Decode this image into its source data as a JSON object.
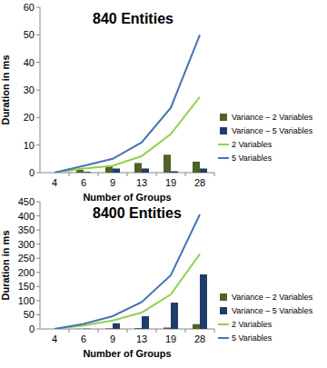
{
  "chart_data": [
    {
      "type": "bar",
      "title": "840 Entities",
      "x_label": "Number of Groups",
      "y_label": "Duration in ms",
      "categories": [
        "4",
        "6",
        "9",
        "13",
        "19",
        "28"
      ],
      "ylim": [
        0,
        60
      ],
      "yticks": [
        0,
        10,
        20,
        30,
        40,
        50,
        60
      ],
      "grid": false,
      "legend": "right",
      "series": [
        {
          "name": "Variance – 2 Variables",
          "type": "bar",
          "color": "#4f6228",
          "values": [
            0,
            1,
            2.5,
            3.5,
            6.5,
            4
          ]
        },
        {
          "name": "Variance – 5 Variables",
          "type": "bar",
          "color": "#1f3d6b",
          "values": [
            0,
            0.3,
            1.5,
            1.5,
            0.5,
            1.5
          ]
        },
        {
          "name": "2 Variables",
          "type": "line",
          "color": "#92d050",
          "values": [
            0,
            1.5,
            2.5,
            6,
            14,
            27.5
          ]
        },
        {
          "name": "5 Variables",
          "type": "line",
          "color": "#4672b5",
          "values": [
            0,
            2.5,
            5,
            11,
            23.5,
            50
          ]
        }
      ]
    },
    {
      "type": "bar",
      "title": "8400 Entities",
      "x_label": "Number of Groups",
      "y_label": "Duration in ms",
      "categories": [
        "4",
        "6",
        "9",
        "13",
        "19",
        "28"
      ],
      "ylim": [
        0,
        450
      ],
      "yticks": [
        0,
        50,
        100,
        150,
        200,
        250,
        300,
        350,
        400,
        450
      ],
      "grid": false,
      "legend": "right",
      "series": [
        {
          "name": "Variance – 2 Variables",
          "type": "bar",
          "color": "#4f6228",
          "values": [
            0,
            0.5,
            2,
            3,
            5,
            17
          ]
        },
        {
          "name": "Variance – 5 Variables",
          "type": "bar",
          "color": "#1f3d6b",
          "values": [
            0,
            1,
            20,
            45,
            93,
            193
          ]
        },
        {
          "name": "2 Variables",
          "type": "line",
          "color": "#92d050",
          "values": [
            0,
            12,
            30,
            58,
            122,
            265
          ]
        },
        {
          "name": "5 Variables",
          "type": "line",
          "color": "#4672b5",
          "values": [
            0,
            18,
            45,
            95,
            190,
            405
          ]
        }
      ]
    }
  ]
}
